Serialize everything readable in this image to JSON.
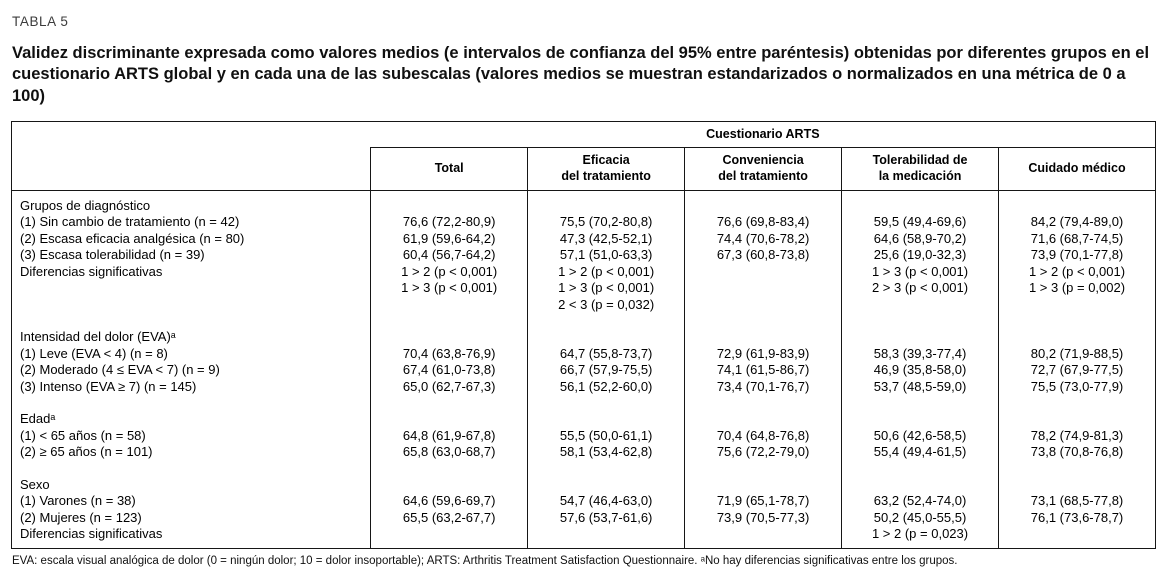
{
  "page": {
    "table_label": "TABLA 5",
    "title": "Validez discriminante expresada como valores medios (e intervalos de confianza del 95% entre paréntesis) obtenidas por diferentes grupos en el cuestionario ARTS global y en cada una de las subescalas (valores medios se muestran estandarizados o normalizados en una métrica de 0 a 100)",
    "footnote": "EVA: escala visual analógica de dolor (0 = ningún dolor; 10 = dolor insoportable); ARTS: Arthritis Treatment Satisfaction Questionnaire. ᵃNo hay diferencias significativas entre los grupos."
  },
  "table": {
    "group_header": "Cuestionario ARTS",
    "columns": [
      "Total",
      "Eficacia\ndel tratamiento",
      "Conveniencia\ndel tratamiento",
      "Tolerabilidad de\nla medicación",
      "Cuidado médico"
    ],
    "sections": [
      {
        "header": "Grupos de diagnóstico",
        "rows": [
          {
            "label": "(1) Sin cambio de tratamiento (n = 42)",
            "cells": [
              "76,6 (72,2-80,9)",
              "75,5 (70,2-80,8)",
              "76,6 (69,8-83,4)",
              "59,5 (49,4-69,6)",
              "84,2 (79,4-89,0)"
            ]
          },
          {
            "label": "(2) Escasa eficacia analgésica (n = 80)",
            "cells": [
              "61,9 (59,6-64,2)",
              "47,3 (42,5-52,1)",
              "74,4 (70,6-78,2)",
              "64,6 (58,9-70,2)",
              "71,6 (68,7-74,5)"
            ]
          },
          {
            "label": "(3) Escasa tolerabilidad (n = 39)",
            "cells": [
              "60,4 (56,7-64,2)",
              "57,1 (51,0-63,3)",
              "67,3 (60,8-73,8)",
              "25,6 (19,0-32,3)",
              "73,9 (70,1-77,8)"
            ]
          },
          {
            "label": "Diferencias significativas",
            "cells": [
              "1 > 2 (p < 0,001)\n1 > 3 (p < 0,001)",
              "1 > 2 (p < 0,001)\n1 > 3 (p < 0,001)\n2 < 3 (p = 0,032)",
              "",
              "1 > 3 (p < 0,001)\n2 > 3 (p < 0,001)",
              "1 > 2 (p < 0,001)\n1 > 3 (p = 0,002)"
            ]
          }
        ]
      },
      {
        "header": "Intensidad del dolor (EVA)ᵃ",
        "rows": [
          {
            "label": "(1) Leve (EVA < 4) (n = 8)",
            "cells": [
              "70,4 (63,8-76,9)",
              "64,7 (55,8-73,7)",
              "72,9 (61,9-83,9)",
              "58,3 (39,3-77,4)",
              "80,2 (71,9-88,5)"
            ]
          },
          {
            "label": "(2) Moderado (4 ≤ EVA < 7) (n = 9)",
            "cells": [
              "67,4 (61,0-73,8)",
              "66,7 (57,9-75,5)",
              "74,1 (61,5-86,7)",
              "46,9 (35,8-58,0)",
              "72,7 (67,9-77,5)"
            ]
          },
          {
            "label": "(3) Intenso (EVA ≥ 7) (n = 145)",
            "cells": [
              "65,0 (62,7-67,3)",
              "56,1 (52,2-60,0)",
              "73,4 (70,1-76,7)",
              "53,7 (48,5-59,0)",
              "75,5 (73,0-77,9)"
            ]
          }
        ]
      },
      {
        "header": "Edadᵃ",
        "rows": [
          {
            "label": "(1) < 65 años (n = 58)",
            "cells": [
              "64,8 (61,9-67,8)",
              "55,5 (50,0-61,1)",
              "70,4 (64,8-76,8)",
              "50,6 (42,6-58,5)",
              "78,2 (74,9-81,3)"
            ]
          },
          {
            "label": "(2) ≥ 65 años (n = 101)",
            "cells": [
              "65,8 (63,0-68,7)",
              "58,1 (53,4-62,8)",
              "75,6 (72,2-79,0)",
              "55,4 (49,4-61,5)",
              "73,8 (70,8-76,8)"
            ]
          }
        ]
      },
      {
        "header": "Sexo",
        "rows": [
          {
            "label": "(1) Varones (n = 38)",
            "cells": [
              "64,6 (59,6-69,7)",
              "54,7 (46,4-63,0)",
              "71,9 (65,1-78,7)",
              "63,2 (52,4-74,0)",
              "73,1 (68,5-77,8)"
            ]
          },
          {
            "label": "(2) Mujeres (n = 123)",
            "cells": [
              "65,5 (63,2-67,7)",
              "57,6 (53,7-61,6)",
              "73,9 (70,5-77,3)",
              "50,2 (45,0-55,5)",
              "76,1 (73,6-78,7)"
            ]
          },
          {
            "label": "Diferencias significativas",
            "cells": [
              "",
              "",
              "",
              "1 > 2 (p = 0,023)",
              ""
            ]
          }
        ]
      }
    ]
  }
}
